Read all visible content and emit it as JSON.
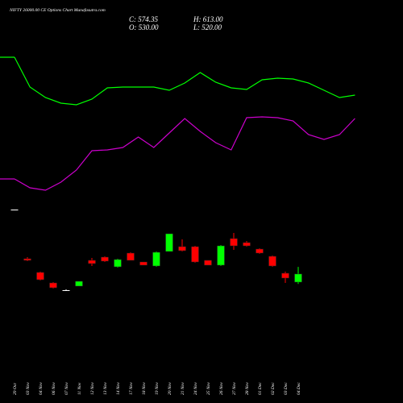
{
  "chart_data": {
    "type": "candlestick",
    "title": "NIFTY 26000.00 CE Options Chart Munafasutra.com",
    "close_label": "C: 574.35",
    "open_label": "O: 530.00",
    "high_label": "H: 613.00",
    "low_label": "L: 520.00",
    "categories": [
      "29 Oct",
      "03 Nov",
      "04 Nov",
      "06 Nov",
      "07 Nov",
      "11 Nov",
      "12 Nov",
      "13 Nov",
      "14 Nov",
      "17 Nov",
      "18 Nov",
      "19 Nov",
      "20 Nov",
      "21 Nov",
      "24 Nov",
      "25 Nov",
      "26 Nov",
      "27 Nov",
      "28 Nov",
      "01 Dec",
      "02 Dec",
      "03 Dec",
      "04 Dec"
    ],
    "open": [
      926,
      657.6,
      582.8,
      525.6,
      486,
      508,
      648.8,
      666.4,
      613.6,
      688.4,
      640,
      618,
      697.2,
      723.6,
      723.6,
      648.8,
      622.4,
      767.6,
      745.6,
      710.4,
      670.8,
      578.4,
      530
    ],
    "high": [
      926,
      666.4,
      587.2,
      530,
      490.4,
      534.4,
      662,
      670.8,
      657.6,
      692.8,
      640,
      697.2,
      794,
      763.2,
      728,
      648.8,
      732.4,
      798.4,
      754.4,
      714.8,
      675.2,
      587.2,
      613
    ],
    "low": [
      926,
      644.4,
      538.8,
      494.8,
      481.6,
      508,
      618,
      640,
      609.2,
      648.8,
      622.4,
      613.6,
      697.2,
      697.2,
      635.6,
      622.4,
      618,
      706,
      723.6,
      684,
      613.6,
      525.6,
      520
    ],
    "close": [
      926,
      648.8,
      543.2,
      499.2,
      486,
      534.4,
      631.2,
      644.4,
      653.2,
      648.8,
      622.4,
      692.8,
      794,
      701.6,
      640,
      622.4,
      728,
      728,
      728,
      688.4,
      618,
      552,
      574.35
    ],
    "up_color": "#00ff00",
    "down_color": "#ff0000",
    "flat_color": "#ffffff",
    "series": [
      {
        "color": "#00ff00",
        "values": [
          1757.6,
          1594.8,
          1537.6,
          1506.8,
          1498,
          1528.8,
          1590.4,
          1594.8,
          1594.8,
          1594.8,
          1577.2,
          1616.8,
          1674,
          1621.2,
          1590.4,
          1581.6,
          1634.4,
          1643.2,
          1638.8,
          1616.8,
          1577.2,
          1537.6,
          1550.8
        ]
      },
      {
        "color": "#cc00cc",
        "values": [
          1093.2,
          1044.8,
          1031.6,
          1075.6,
          1141.6,
          1247.2,
          1251.6,
          1264.8,
          1322,
          1264.8,
          1344,
          1423.2,
          1352.8,
          1291.2,
          1251.6,
          1427.6,
          1432,
          1427.6,
          1410,
          1335.2,
          1308.8,
          1335.2,
          1423.2
        ]
      }
    ],
    "ylim": [
      -130,
      2070
    ]
  }
}
